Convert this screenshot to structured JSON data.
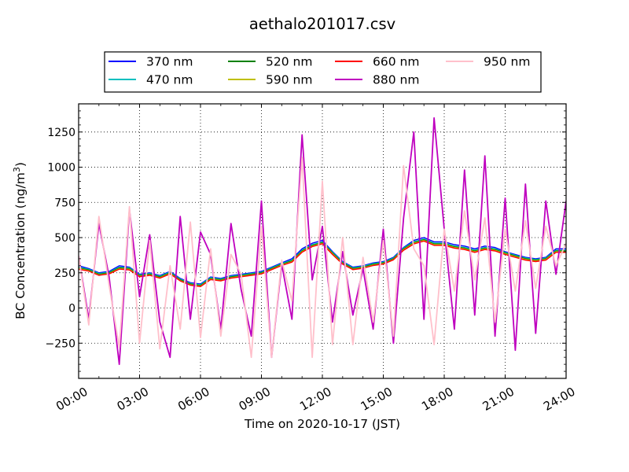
{
  "chart_data": {
    "type": "line",
    "title": "aethalo201017.csv",
    "xlabel": "Time on 2020-10-17 (JST)",
    "ylabel": "BC Concentration (ng/m",
    "ylabel_sup": "3",
    "ylabel_end": ")",
    "xlim": [
      "00:00",
      "24:00"
    ],
    "ylim": [
      -500,
      1450
    ],
    "x_ticks": [
      "00:00",
      "03:00",
      "06:00",
      "09:00",
      "12:00",
      "15:00",
      "18:00",
      "21:00",
      "24:00"
    ],
    "y_ticks": [
      -250,
      0,
      250,
      500,
      750,
      1000,
      1250
    ],
    "y_tick_labels": [
      "−250",
      "0",
      "250",
      "500",
      "750",
      "1000",
      "1250"
    ],
    "grid": true,
    "legend_position": "top-center",
    "x": [
      "00:00",
      "00:30",
      "01:00",
      "01:30",
      "02:00",
      "02:30",
      "03:00",
      "03:30",
      "04:00",
      "04:30",
      "05:00",
      "05:30",
      "06:00",
      "06:30",
      "07:00",
      "07:30",
      "08:00",
      "08:30",
      "09:00",
      "09:30",
      "10:00",
      "10:30",
      "11:00",
      "11:30",
      "12:00",
      "12:30",
      "13:00",
      "13:30",
      "14:00",
      "14:30",
      "15:00",
      "15:30",
      "16:00",
      "16:30",
      "17:00",
      "17:30",
      "18:00",
      "18:30",
      "19:00",
      "19:30",
      "20:00",
      "20:30",
      "21:00",
      "21:30",
      "22:00",
      "22:30",
      "23:00",
      "23:30",
      "24:00"
    ],
    "series": [
      {
        "name": "370 nm",
        "color": "#0000ff",
        "values": [
          300,
          280,
          250,
          260,
          300,
          290,
          240,
          250,
          230,
          260,
          210,
          180,
          170,
          220,
          210,
          230,
          240,
          250,
          260,
          290,
          320,
          350,
          420,
          460,
          480,
          400,
          330,
          290,
          300,
          320,
          330,
          360,
          430,
          480,
          500,
          470,
          470,
          450,
          440,
          420,
          440,
          430,
          400,
          380,
          360,
          350,
          360,
          420,
          420
        ]
      },
      {
        "name": "470 nm",
        "color": "#00bfbf",
        "values": [
          290,
          275,
          245,
          255,
          290,
          285,
          235,
          245,
          225,
          255,
          205,
          175,
          165,
          215,
          205,
          225,
          235,
          245,
          255,
          285,
          315,
          340,
          410,
          450,
          470,
          395,
          325,
          285,
          295,
          315,
          325,
          355,
          425,
          470,
          490,
          460,
          460,
          440,
          430,
          410,
          430,
          420,
          395,
          375,
          355,
          345,
          355,
          410,
          410
        ]
      },
      {
        "name": "520 nm",
        "color": "#008000",
        "values": [
          285,
          270,
          240,
          250,
          285,
          280,
          230,
          240,
          220,
          250,
          200,
          170,
          160,
          210,
          200,
          220,
          230,
          240,
          250,
          280,
          310,
          335,
          405,
          445,
          465,
          390,
          320,
          280,
          290,
          310,
          320,
          350,
          420,
          465,
          485,
          455,
          455,
          435,
          425,
          405,
          425,
          415,
          390,
          370,
          350,
          340,
          350,
          405,
          405
        ]
      },
      {
        "name": "590 nm",
        "color": "#bfbf00",
        "values": [
          280,
          265,
          235,
          245,
          280,
          275,
          225,
          235,
          215,
          245,
          195,
          165,
          155,
          205,
          195,
          215,
          225,
          235,
          245,
          275,
          305,
          330,
          400,
          440,
          460,
          385,
          315,
          275,
          285,
          305,
          315,
          345,
          415,
          460,
          480,
          450,
          450,
          430,
          420,
          400,
          420,
          410,
          385,
          365,
          345,
          335,
          345,
          400,
          400
        ]
      },
      {
        "name": "660 nm",
        "color": "#ff0000",
        "values": [
          275,
          262,
          232,
          242,
          276,
          270,
          222,
          232,
          212,
          242,
          192,
          162,
          152,
          202,
          192,
          212,
          222,
          232,
          242,
          272,
          302,
          326,
          396,
          436,
          456,
          380,
          312,
          272,
          282,
          302,
          312,
          342,
          410,
          455,
          475,
          445,
          445,
          425,
          415,
          395,
          415,
          405,
          380,
          360,
          340,
          330,
          340,
          395,
          395
        ]
      },
      {
        "name": "880 nm",
        "color": "#bf00bf",
        "values": [
          370,
          -80,
          600,
          220,
          -400,
          700,
          80,
          520,
          -100,
          -350,
          650,
          -80,
          540,
          380,
          -150,
          600,
          130,
          -200,
          760,
          -350,
          310,
          -80,
          1230,
          200,
          580,
          -100,
          400,
          -50,
          280,
          -150,
          560,
          -250,
          640,
          1250,
          -80,
          1350,
          560,
          -150,
          980,
          -50,
          1080,
          -200,
          780,
          -300,
          880,
          -180,
          760,
          240,
          760
        ]
      },
      {
        "name": "950 nm",
        "color": "#ffc0cb",
        "values": [
          370,
          -120,
          650,
          160,
          -280,
          720,
          -250,
          480,
          -290,
          300,
          -150,
          610,
          -210,
          420,
          -200,
          380,
          240,
          -350,
          580,
          -350,
          340,
          50,
          1070,
          -350,
          900,
          -260,
          500,
          -260,
          360,
          -100,
          480,
          -200,
          1010,
          420,
          300,
          -260,
          560,
          120,
          690,
          200,
          640,
          -100,
          560,
          120,
          620,
          140,
          580,
          300,
          460
        ]
      }
    ]
  }
}
